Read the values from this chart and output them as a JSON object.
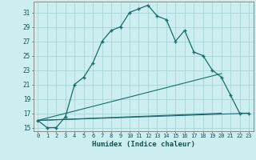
{
  "title": "",
  "xlabel": "Humidex (Indice chaleur)",
  "bg_color": "#cceef0",
  "grid_color": "#aad4d8",
  "line_color": "#1a6b6b",
  "xlim": [
    -0.5,
    23.5
  ],
  "ylim": [
    14.5,
    32.5
  ],
  "xticks": [
    0,
    1,
    2,
    3,
    4,
    5,
    6,
    7,
    8,
    9,
    10,
    11,
    12,
    13,
    14,
    15,
    16,
    17,
    18,
    19,
    20,
    21,
    22,
    23
  ],
  "yticks": [
    15,
    17,
    19,
    21,
    23,
    25,
    27,
    29,
    31
  ],
  "line1_x": [
    0,
    1,
    2,
    3,
    4,
    5,
    6,
    7,
    8,
    9,
    10,
    11,
    12,
    13,
    14,
    15,
    16,
    17,
    18,
    19,
    20,
    21,
    22,
    23
  ],
  "line1_y": [
    16.0,
    15.0,
    15.0,
    16.5,
    21.0,
    22.0,
    24.0,
    27.0,
    28.5,
    29.0,
    31.0,
    31.5,
    32.0,
    30.5,
    30.0,
    27.0,
    28.5,
    25.5,
    25.0,
    23.0,
    22.0,
    19.5,
    17.0,
    17.0
  ],
  "line2_x": [
    0,
    23
  ],
  "line2_y": [
    16.0,
    17.0
  ],
  "line3_x": [
    0,
    20
  ],
  "line3_y": [
    16.0,
    22.5
  ],
  "line4_x": [
    0,
    20
  ],
  "line4_y": [
    16.0,
    17.0
  ]
}
